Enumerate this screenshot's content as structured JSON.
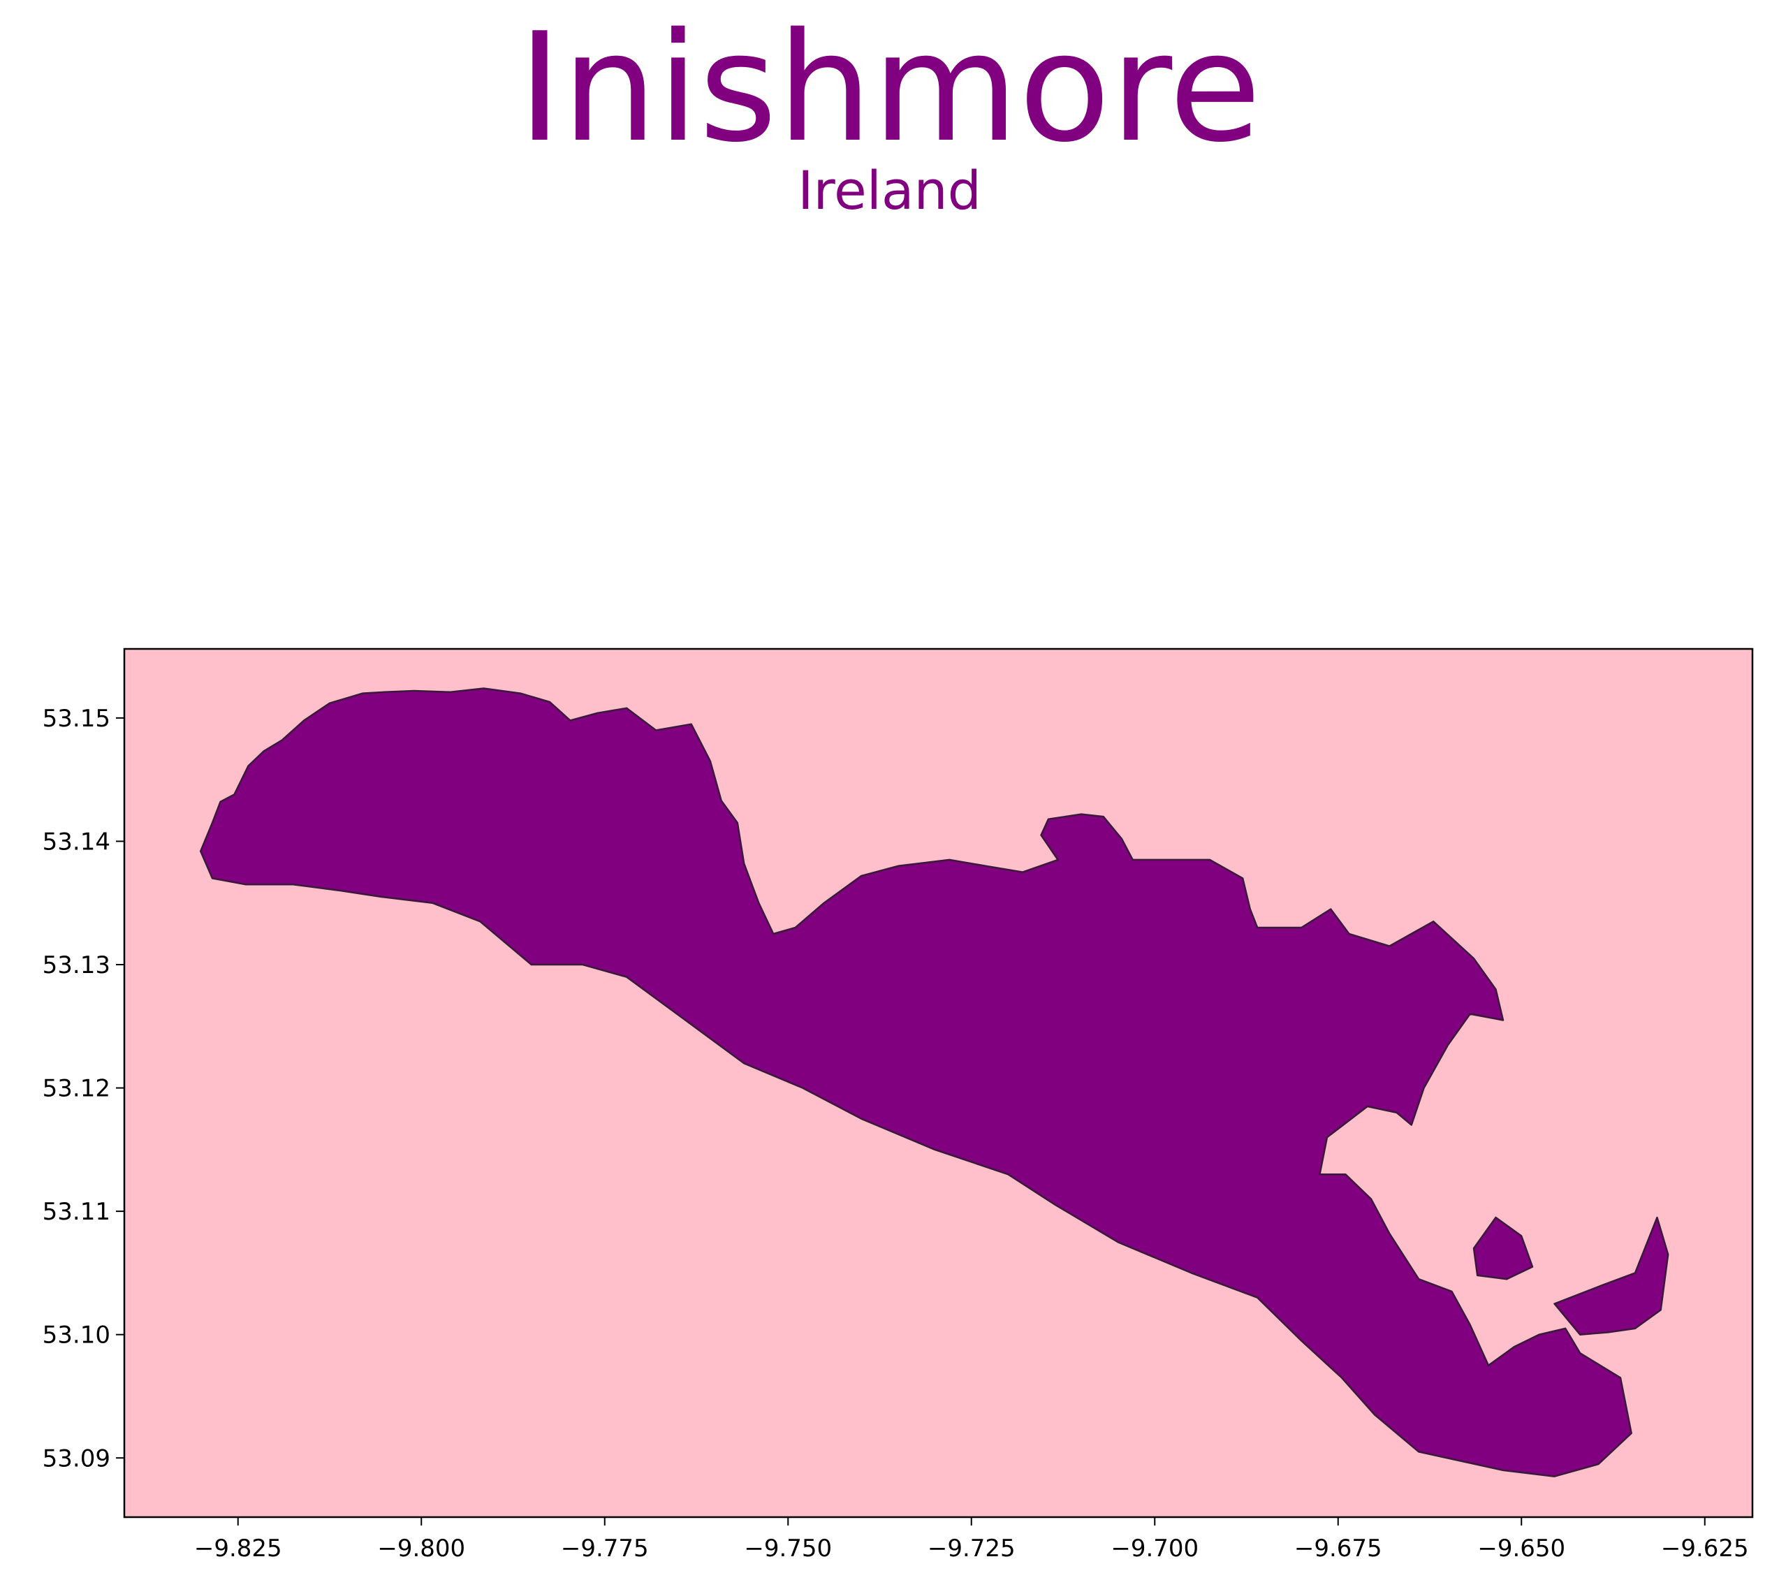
{
  "title": "Inishmore",
  "subtitle": "Ireland",
  "colors": {
    "title": "#800080",
    "land_fill": "#800080",
    "land_edge": "#3a1a3a",
    "water": "#ffc0cb",
    "frame": "#000000"
  },
  "chart_data": {
    "type": "map",
    "title": "Inishmore",
    "subtitle": "Ireland",
    "xlabel": "",
    "ylabel": "",
    "xlim": [
      -9.8405,
      -9.6185
    ],
    "ylim": [
      53.0852,
      53.1556
    ],
    "grid": false,
    "x_ticks": [
      -9.825,
      -9.8,
      -9.775,
      -9.75,
      -9.725,
      -9.7,
      -9.675,
      -9.65,
      -9.625
    ],
    "x_tick_labels": [
      "−9.825",
      "−9.800",
      "−9.775",
      "−9.750",
      "−9.725",
      "−9.700",
      "−9.675",
      "−9.650",
      "−9.625"
    ],
    "y_ticks": [
      53.09,
      53.1,
      53.11,
      53.12,
      53.13,
      53.14,
      53.15
    ],
    "y_tick_labels": [
      "53.09",
      "53.10",
      "53.11",
      "53.12",
      "53.13",
      "53.14",
      "53.15"
    ],
    "polygons": [
      {
        "name": "main-island",
        "coords": [
          [
            -9.8301,
            53.1392
          ],
          [
            -9.8285,
            53.1415
          ],
          [
            -9.8274,
            53.1432
          ],
          [
            -9.8255,
            53.1438
          ],
          [
            -9.8236,
            53.1461
          ],
          [
            -9.8215,
            53.1473
          ],
          [
            -9.819,
            53.1482
          ],
          [
            -9.816,
            53.1498
          ],
          [
            -9.8125,
            53.1512
          ],
          [
            -9.808,
            53.152
          ],
          [
            -9.805,
            53.1521
          ],
          [
            -9.801,
            53.1522
          ],
          [
            -9.796,
            53.1521
          ],
          [
            -9.7915,
            53.1524
          ],
          [
            -9.7865,
            53.152
          ],
          [
            -9.7825,
            53.1513
          ],
          [
            -9.7797,
            53.1498
          ],
          [
            -9.776,
            53.1504
          ],
          [
            -9.772,
            53.1508
          ],
          [
            -9.768,
            53.149
          ],
          [
            -9.7632,
            53.1495
          ],
          [
            -9.7606,
            53.1465
          ],
          [
            -9.7591,
            53.1433
          ],
          [
            -9.7569,
            53.1415
          ],
          [
            -9.756,
            53.1382
          ],
          [
            -9.754,
            53.135
          ],
          [
            -9.752,
            53.1325
          ],
          [
            -9.749,
            53.133
          ],
          [
            -9.7451,
            53.135
          ],
          [
            -9.74,
            53.1372
          ],
          [
            -9.735,
            53.138
          ],
          [
            -9.728,
            53.1385
          ],
          [
            -9.723,
            53.138
          ],
          [
            -9.718,
            53.1375
          ],
          [
            -9.7132,
            53.1385
          ],
          [
            -9.7155,
            53.1405
          ],
          [
            -9.7145,
            53.1418
          ],
          [
            -9.71,
            53.1422
          ],
          [
            -9.707,
            53.142
          ],
          [
            -9.7045,
            53.1402
          ],
          [
            -9.703,
            53.1385
          ],
          [
            -9.698,
            53.1385
          ],
          [
            -9.6925,
            53.1385
          ],
          [
            -9.688,
            53.137
          ],
          [
            -9.687,
            53.1345
          ],
          [
            -9.686,
            53.133
          ],
          [
            -9.68,
            53.133
          ],
          [
            -9.676,
            53.1345
          ],
          [
            -9.6735,
            53.1325
          ],
          [
            -9.668,
            53.1315
          ],
          [
            -9.662,
            53.1335
          ],
          [
            -9.6565,
            53.1305
          ],
          [
            -9.6535,
            53.128
          ],
          [
            -9.6525,
            53.1255
          ],
          [
            -9.657,
            53.126
          ],
          [
            -9.66,
            53.1235
          ],
          [
            -9.6633,
            53.12
          ],
          [
            -9.665,
            53.117
          ],
          [
            -9.667,
            53.118
          ],
          [
            -9.671,
            53.1185
          ],
          [
            -9.6765,
            53.116
          ],
          [
            -9.6775,
            53.113
          ],
          [
            -9.674,
            53.113
          ],
          [
            -9.6705,
            53.111
          ],
          [
            -9.668,
            53.1082
          ],
          [
            -9.664,
            53.1045
          ],
          [
            -9.6595,
            53.1035
          ],
          [
            -9.657,
            53.1008
          ],
          [
            -9.6545,
            53.0975
          ],
          [
            -9.651,
            53.099
          ],
          [
            -9.6476,
            53.1
          ],
          [
            -9.644,
            53.1005
          ],
          [
            -9.642,
            53.0985
          ],
          [
            -9.6365,
            53.0965
          ],
          [
            -9.635,
            53.092
          ],
          [
            -9.6395,
            53.0895
          ],
          [
            -9.6455,
            53.0885
          ],
          [
            -9.6525,
            53.089
          ],
          [
            -9.664,
            53.0905
          ],
          [
            -9.67,
            53.0935
          ],
          [
            -9.6745,
            53.0965
          ],
          [
            -9.68,
            53.0995
          ],
          [
            -9.686,
            53.103
          ],
          [
            -9.695,
            53.105
          ],
          [
            -9.705,
            53.1075
          ],
          [
            -9.7135,
            53.1105
          ],
          [
            -9.72,
            53.113
          ],
          [
            -9.73,
            53.115
          ],
          [
            -9.74,
            53.1175
          ],
          [
            -9.748,
            53.12
          ],
          [
            -9.756,
            53.122
          ],
          [
            -9.764,
            53.1255
          ],
          [
            -9.772,
            53.129
          ],
          [
            -9.778,
            53.13
          ],
          [
            -9.785,
            53.13
          ],
          [
            -9.792,
            53.1335
          ],
          [
            -9.7985,
            53.135
          ],
          [
            -9.8055,
            53.1355
          ],
          [
            -9.811,
            53.136
          ],
          [
            -9.8175,
            53.1365
          ],
          [
            -9.824,
            53.1365
          ],
          [
            -9.8285,
            53.137
          ],
          [
            -9.8301,
            53.1392
          ]
        ]
      },
      {
        "name": "eastern-peninsula",
        "coords": [
          [
            -9.6455,
            53.1025
          ],
          [
            -9.639,
            53.104
          ],
          [
            -9.6345,
            53.105
          ],
          [
            -9.6315,
            53.1095
          ],
          [
            -9.63,
            53.1065
          ],
          [
            -9.631,
            53.102
          ],
          [
            -9.6345,
            53.1005
          ],
          [
            -9.638,
            53.1002
          ],
          [
            -9.642,
            53.1
          ],
          [
            -9.6455,
            53.1025
          ]
        ]
      },
      {
        "name": "small-islet",
        "coords": [
          [
            -9.6565,
            53.107
          ],
          [
            -9.6535,
            53.1095
          ],
          [
            -9.65,
            53.108
          ],
          [
            -9.6485,
            53.1055
          ],
          [
            -9.652,
            53.1045
          ],
          [
            -9.656,
            53.1048
          ],
          [
            -9.6565,
            53.107
          ]
        ]
      }
    ]
  }
}
